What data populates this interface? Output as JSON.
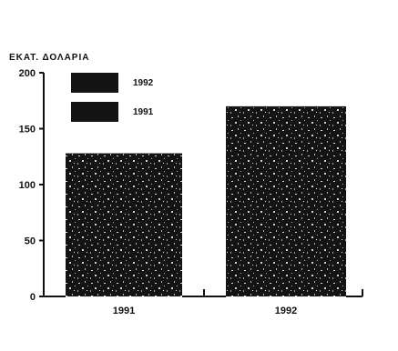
{
  "chart_data": {
    "type": "bar",
    "ylabel": "ΕΚΑΤ. ΔΟΛΑΡΙΑ",
    "categories": [
      "1991",
      "1992"
    ],
    "values": [
      128,
      170
    ],
    "ylim": [
      0,
      200
    ],
    "yticks": [
      "0",
      "50",
      "100",
      "150",
      "200"
    ],
    "legend": [
      {
        "label": "1992"
      },
      {
        "label": "1991"
      }
    ],
    "legend_placement": "top-left",
    "grid": false,
    "colors": {
      "bar": "#141414",
      "speckle": "#ffffff",
      "axis": "#111111"
    }
  }
}
